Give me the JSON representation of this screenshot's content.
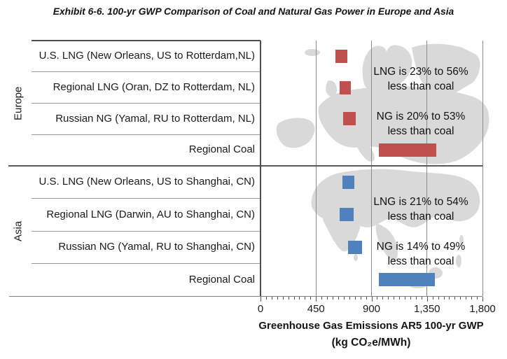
{
  "title": "Exhibit 6-6. 100-yr GWP Comparison of Coal and Natural Gas Power in Europe and Asia",
  "colors": {
    "europe_bar": "#C0504D",
    "asia_bar": "#4F81BD",
    "map_silhouette": "#D9D9D9",
    "gridline": "#8C8C8C",
    "row_separator": "#9A9A9A",
    "border": "#4D4D4D",
    "text": "#1A1A1A"
  },
  "chart_data": {
    "type": "bar",
    "subtype": "horizontal floating range bars",
    "title": "Exhibit 6-6. 100-yr GWP Comparison of Coal and Natural Gas Power in Europe and Asia",
    "xlabel": "Greenhouse Gas Emissions AR5 100-yr GWP (kg CO₂e/MWh)",
    "xlabel_line1": "Greenhouse Gas Emissions AR5 100-yr GWP",
    "xlabel_line2": "(kg CO₂e/MWh)",
    "xlim": [
      0,
      1800
    ],
    "minor_tick_step": 45,
    "grid": "vertical gridlines at major ticks",
    "legend": "none",
    "xticks": [
      {
        "label": "0",
        "value": 0
      },
      {
        "label": "450",
        "value": 450
      },
      {
        "label": "900",
        "value": 900
      },
      {
        "label": "1,350",
        "value": 1350
      },
      {
        "label": "1,800",
        "value": 1800
      }
    ],
    "groups": [
      {
        "name": "Europe",
        "bar_color": "#C0504D",
        "map": "europe-silhouette",
        "rows": [
          {
            "label": "U.S. LNG (New Orleans, US to Rotterdam,NL)",
            "range_kg_co2e_per_mwh": [
              605,
              705
            ]
          },
          {
            "label": "Regional LNG (Oran, DZ to Rotterdam, NL)",
            "range_kg_co2e_per_mwh": [
              640,
              735
            ]
          },
          {
            "label": "Russian NG (Yamal, RU to Rotterdam, NL)",
            "range_kg_co2e_per_mwh": [
              670,
              775
            ]
          },
          {
            "label": "Regional Coal",
            "range_kg_co2e_per_mwh": [
              960,
              1425
            ]
          }
        ],
        "annotations": [
          {
            "line1": "LNG is 23% to 56%",
            "line2": "less than coal"
          },
          {
            "line1": "NG is 20% to 53%",
            "line2": "less than coal"
          }
        ]
      },
      {
        "name": "Asia",
        "bar_color": "#4F81BD",
        "map": "asia-silhouette",
        "rows": [
          {
            "label": "U.S. LNG (New Orleans, US to Shanghai, CN)",
            "range_kg_co2e_per_mwh": [
              665,
              760
            ]
          },
          {
            "label": "Regional LNG (Darwin, AU to Shanghai, CN)",
            "range_kg_co2e_per_mwh": [
              640,
              755
            ]
          },
          {
            "label": "Russian NG (Yamal, RU to Shanghai, CN)",
            "range_kg_co2e_per_mwh": [
              710,
              825
            ]
          },
          {
            "label": "Regional Coal",
            "range_kg_co2e_per_mwh": [
              960,
              1415
            ]
          }
        ],
        "annotations": [
          {
            "line1": "LNG is 21% to 54%",
            "line2": "less than coal"
          },
          {
            "line1": "NG is 14% to 49%",
            "line2": "less than coal"
          }
        ]
      }
    ]
  }
}
